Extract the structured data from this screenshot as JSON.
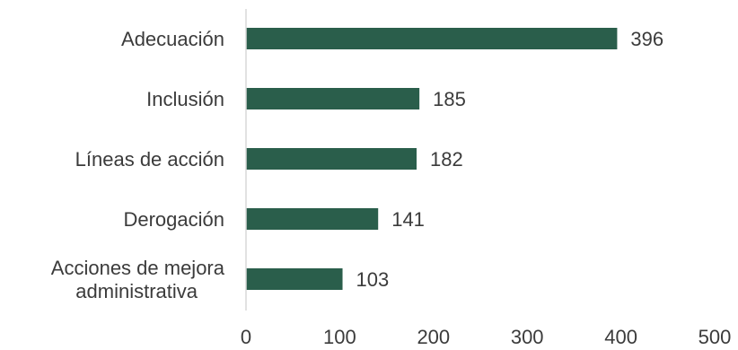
{
  "chart_data": {
    "type": "bar",
    "orientation": "horizontal",
    "categories": [
      [
        "Adecuación"
      ],
      [
        "Inclusión"
      ],
      [
        "Líneas de acción"
      ],
      [
        "Derogación"
      ],
      [
        "Acciones de mejora",
        "administrativa"
      ]
    ],
    "values": [
      396,
      185,
      182,
      141,
      103
    ],
    "xlim": [
      0,
      500
    ],
    "xticks": [
      "0",
      "100",
      "200",
      "300",
      "400",
      "500"
    ],
    "bar_color": "#2a5e4b",
    "axis_color": "#d9d9d9",
    "grid": false,
    "legend": "none"
  }
}
